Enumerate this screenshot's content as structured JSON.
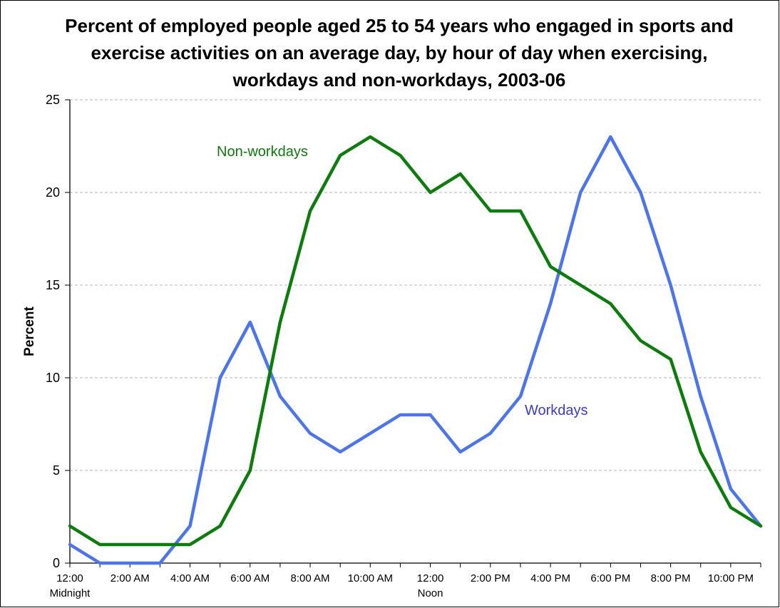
{
  "chart_data": {
    "type": "line",
    "title_lines": [
      "Percent of employed people aged 25 to 54 years who engaged in sports and",
      "exercise activities on an average day, by hour of day when exercising,",
      "workdays and non-workdays, 2003-06"
    ],
    "xlabel": "",
    "ylabel": "Percent",
    "ylim": [
      0,
      25
    ],
    "yticks": [
      "0",
      "5",
      "10",
      "15",
      "20",
      "25"
    ],
    "y_gridlines": "dashed",
    "x_tick_labels": [
      [
        "12:00",
        "Midnight"
      ],
      [
        "2:00 AM"
      ],
      [
        "4:00 AM"
      ],
      [
        "6:00 AM"
      ],
      [
        "8:00 AM"
      ],
      [
        "10:00 AM"
      ],
      [
        "12:00",
        "Noon"
      ],
      [
        "2:00 PM"
      ],
      [
        "4:00 PM"
      ],
      [
        "6:00 PM"
      ],
      [
        "8:00 PM"
      ],
      [
        "10:00 PM"
      ]
    ],
    "x_hours": [
      0,
      1,
      2,
      3,
      4,
      5,
      6,
      7,
      8,
      9,
      10,
      11,
      12,
      13,
      14,
      15,
      16,
      17,
      18,
      19,
      20,
      21,
      22,
      23
    ],
    "series": [
      {
        "name": "Workdays",
        "color": "#4a74f0",
        "values": [
          1,
          0,
          0,
          0,
          2,
          10,
          13,
          9,
          7,
          6,
          7,
          8,
          8,
          6,
          7,
          9,
          14,
          20,
          23,
          20,
          15,
          9,
          4,
          2
        ]
      },
      {
        "name": "Non-workdays",
        "color": "#0a7d0a",
        "values": [
          2,
          1,
          1,
          1,
          1,
          2,
          5,
          13,
          19,
          22,
          23,
          22,
          20,
          21,
          19,
          19,
          16,
          15,
          14,
          12,
          11,
          6,
          3,
          2
        ]
      }
    ]
  }
}
